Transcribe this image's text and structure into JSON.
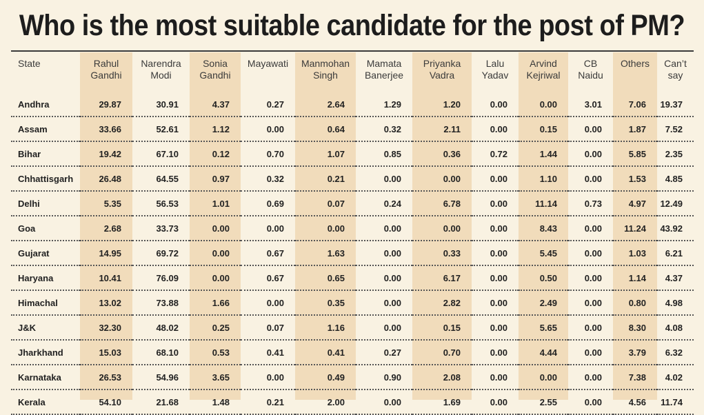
{
  "chart_data": {
    "type": "table",
    "title": "Who is the most suitable candidate for the post of PM?",
    "columns": [
      {
        "key": "state",
        "label": [
          "State"
        ]
      },
      {
        "key": "rahul",
        "label": [
          "Rahul",
          "Gandhi"
        ]
      },
      {
        "key": "modi",
        "label": [
          "Narendra",
          "Modi"
        ]
      },
      {
        "key": "sonia",
        "label": [
          "Sonia",
          "Gandhi"
        ]
      },
      {
        "key": "mayawati",
        "label": [
          "Mayawati"
        ]
      },
      {
        "key": "manmohan",
        "label": [
          "Manmohan",
          "Singh"
        ]
      },
      {
        "key": "mamata",
        "label": [
          "Mamata",
          "Banerjee"
        ]
      },
      {
        "key": "priyanka",
        "label": [
          "Priyanka",
          "Vadra"
        ]
      },
      {
        "key": "lalu",
        "label": [
          "Lalu",
          "Yadav"
        ]
      },
      {
        "key": "kejriwal",
        "label": [
          "Arvind",
          "Kejriwal"
        ]
      },
      {
        "key": "naidu",
        "label": [
          "CB",
          "Naidu"
        ]
      },
      {
        "key": "others",
        "label": [
          "Others"
        ]
      },
      {
        "key": "cantsay",
        "label": [
          "Can’t",
          "say"
        ]
      }
    ],
    "rows": [
      {
        "state": "Andhra",
        "values": [
          "29.87",
          "30.91",
          "4.37",
          "0.27",
          "2.64",
          "1.29",
          "1.20",
          "0.00",
          "0.00",
          "3.01",
          "7.06",
          "19.37"
        ]
      },
      {
        "state": "Assam",
        "values": [
          "33.66",
          "52.61",
          "1.12",
          "0.00",
          "0.64",
          "0.32",
          "2.11",
          "0.00",
          "0.15",
          "0.00",
          "1.87",
          "7.52"
        ]
      },
      {
        "state": "Bihar",
        "values": [
          "19.42",
          "67.10",
          "0.12",
          "0.70",
          "1.07",
          "0.85",
          "0.36",
          "0.72",
          "1.44",
          "0.00",
          "5.85",
          "2.35"
        ]
      },
      {
        "state": "Chhattisgarh",
        "values": [
          "26.48",
          "64.55",
          "0.97",
          "0.32",
          "0.21",
          "0.00",
          "0.00",
          "0.00",
          "1.10",
          "0.00",
          "1.53",
          "4.85"
        ]
      },
      {
        "state": "Delhi",
        "values": [
          "5.35",
          "56.53",
          "1.01",
          "0.69",
          "0.07",
          "0.24",
          "6.78",
          "0.00",
          "11.14",
          "0.73",
          "4.97",
          "12.49"
        ]
      },
      {
        "state": "Goa",
        "values": [
          "2.68",
          "33.73",
          "0.00",
          "0.00",
          "0.00",
          "0.00",
          "0.00",
          "0.00",
          "8.43",
          "0.00",
          "11.24",
          "43.92"
        ]
      },
      {
        "state": "Gujarat",
        "values": [
          "14.95",
          "69.72",
          "0.00",
          "0.67",
          "1.63",
          "0.00",
          "0.33",
          "0.00",
          "5.45",
          "0.00",
          "1.03",
          "6.21"
        ]
      },
      {
        "state": "Haryana",
        "values": [
          "10.41",
          "76.09",
          "0.00",
          "0.67",
          "0.65",
          "0.00",
          "6.17",
          "0.00",
          "0.50",
          "0.00",
          "1.14",
          "4.37"
        ]
      },
      {
        "state": "Himachal",
        "values": [
          "13.02",
          "73.88",
          "1.66",
          "0.00",
          "0.35",
          "0.00",
          "2.82",
          "0.00",
          "2.49",
          "0.00",
          "0.80",
          "4.98"
        ]
      },
      {
        "state": "J&K",
        "values": [
          "32.30",
          "48.02",
          "0.25",
          "0.07",
          "1.16",
          "0.00",
          "0.15",
          "0.00",
          "5.65",
          "0.00",
          "8.30",
          "4.08"
        ]
      },
      {
        "state": "Jharkhand",
        "values": [
          "15.03",
          "68.10",
          "0.53",
          "0.41",
          "0.41",
          "0.27",
          "0.70",
          "0.00",
          "4.44",
          "0.00",
          "3.79",
          "6.32"
        ]
      },
      {
        "state": "Karnataka",
        "values": [
          "26.53",
          "54.96",
          "3.65",
          "0.00",
          "0.49",
          "0.90",
          "2.08",
          "0.00",
          "0.00",
          "0.00",
          "7.38",
          "4.02"
        ]
      },
      {
        "state": "Kerala",
        "values": [
          "54.10",
          "21.68",
          "1.48",
          "0.21",
          "2.00",
          "0.00",
          "1.69",
          "0.00",
          "2.55",
          "0.00",
          "4.56",
          "11.74"
        ]
      }
    ],
    "shaded_columns": [
      "rahul",
      "sonia",
      "manmohan",
      "priyanka",
      "kejriwal",
      "others"
    ],
    "colors": {
      "background": "#f9f2e2",
      "shade": "#f1dcbb",
      "text": "#2a2a2a"
    }
  }
}
